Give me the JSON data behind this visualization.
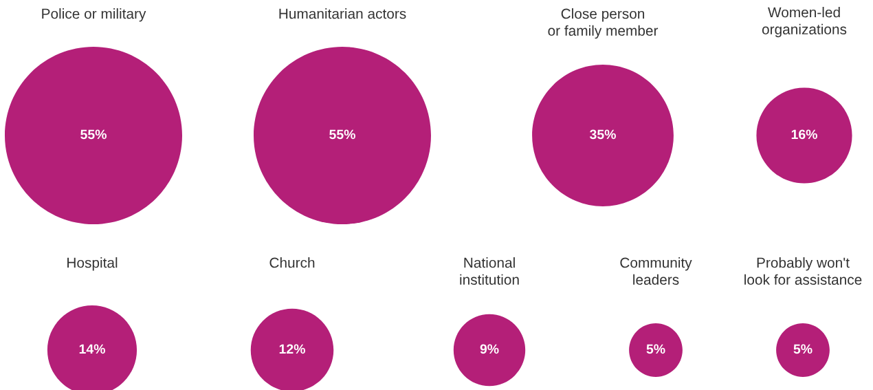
{
  "chart_data": {
    "type": "other",
    "categories": [
      "Police or military",
      "Humanitarian actors",
      "Close person\nor family member",
      "Women-led\norganizations",
      "Hospital",
      "Church",
      "National\ninstitution",
      "Community\nleaders",
      "Probably won't\nlook for assistance"
    ],
    "values": [
      55,
      55,
      35,
      16,
      14,
      12,
      9,
      5,
      5
    ],
    "value_labels": [
      "55%",
      "55%",
      "35%",
      "16%",
      "14%",
      "12%",
      "9%",
      "5%",
      "5%"
    ],
    "color": "#b41f78"
  }
}
